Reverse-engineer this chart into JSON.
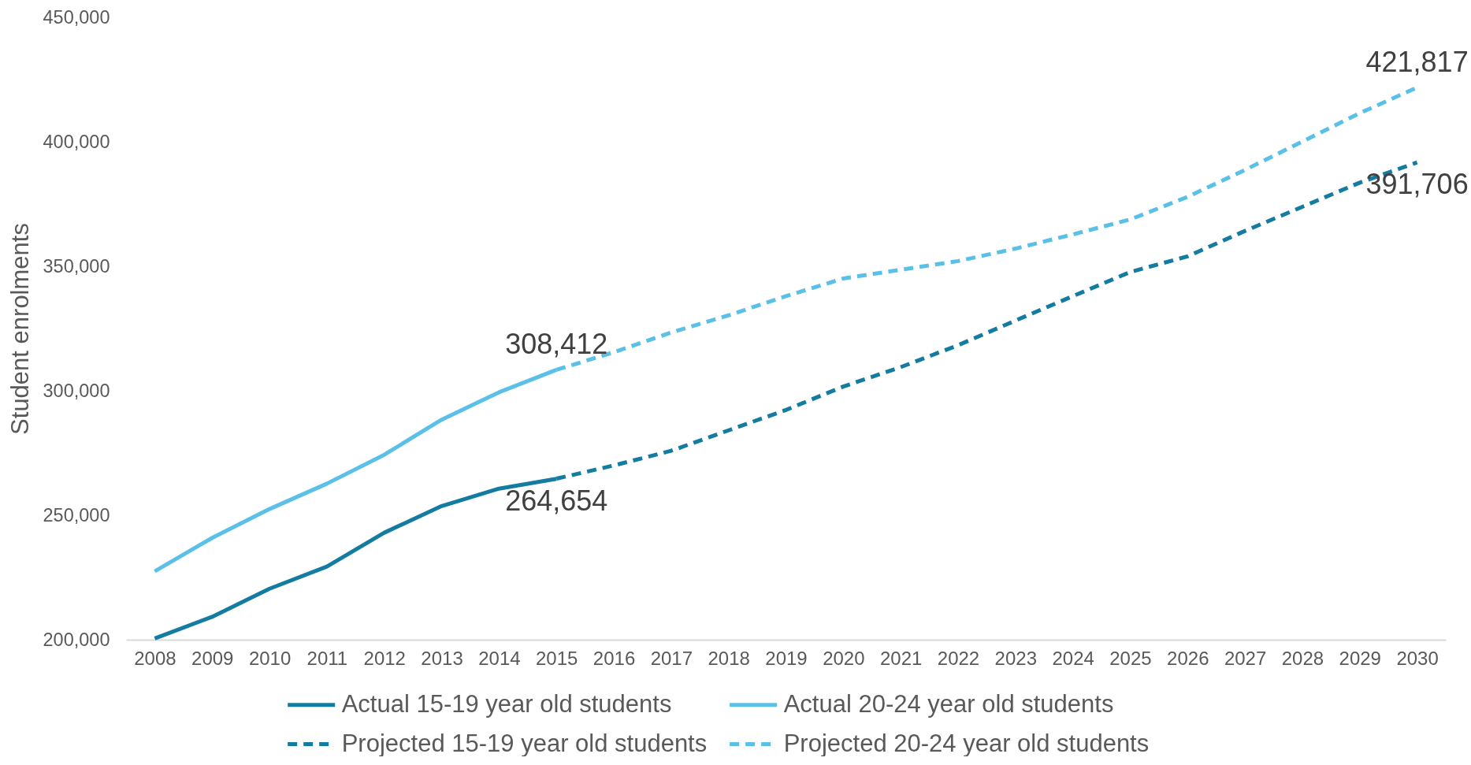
{
  "chart_data": {
    "type": "line",
    "ylabel": "Student enrolments",
    "categories": [
      "2008",
      "2009",
      "2010",
      "2011",
      "2012",
      "2013",
      "2014",
      "2015",
      "2016",
      "2017",
      "2018",
      "2019",
      "2020",
      "2021",
      "2022",
      "2023",
      "2024",
      "2025",
      "2026",
      "2027",
      "2028",
      "2029",
      "2030"
    ],
    "ylim": [
      200000,
      450000
    ],
    "yticks": [
      {
        "value": 200000,
        "label": "200,000"
      },
      {
        "value": 250000,
        "label": "250,000"
      },
      {
        "value": 300000,
        "label": "300,000"
      },
      {
        "value": 350000,
        "label": "350,000"
      },
      {
        "value": 400000,
        "label": "400,000"
      },
      {
        "value": 450000,
        "label": "450,000"
      }
    ],
    "legend": "bottom",
    "series": [
      {
        "name": "Actual 15-19 year old students",
        "color": "#137ca0",
        "line_style": "solid",
        "values": [
          200500,
          209200,
          220500,
          229400,
          243000,
          253700,
          260700,
          264654,
          null,
          null,
          null,
          null,
          null,
          null,
          null,
          null,
          null,
          null,
          null,
          null,
          null,
          null,
          null
        ],
        "value_labels": [
          null,
          null,
          null,
          null,
          null,
          null,
          null,
          "264,654",
          null,
          null,
          null,
          null,
          null,
          null,
          null,
          null,
          null,
          null,
          null,
          null,
          null,
          null,
          null
        ]
      },
      {
        "name": "Actual 20-24 year old students",
        "color": "#5bc0e8",
        "line_style": "solid",
        "values": [
          227500,
          240900,
          252500,
          262700,
          274300,
          288400,
          299400,
          308412,
          null,
          null,
          null,
          null,
          null,
          null,
          null,
          null,
          null,
          null,
          null,
          null,
          null,
          null,
          null
        ],
        "value_labels": [
          null,
          null,
          null,
          null,
          null,
          null,
          null,
          "308,412",
          null,
          null,
          null,
          null,
          null,
          null,
          null,
          null,
          null,
          null,
          null,
          null,
          null,
          null,
          null
        ]
      },
      {
        "name": "Projected 15-19 year old students",
        "color": "#137ca0",
        "line_style": "dashed",
        "values": [
          null,
          null,
          null,
          null,
          null,
          null,
          null,
          264700,
          270000,
          275900,
          284100,
          292300,
          301700,
          309500,
          318300,
          328200,
          338000,
          347700,
          354000,
          364200,
          373900,
          383600,
          391706
        ],
        "value_labels": [
          null,
          null,
          null,
          null,
          null,
          null,
          null,
          null,
          null,
          null,
          null,
          null,
          null,
          null,
          null,
          null,
          null,
          null,
          null,
          null,
          null,
          null,
          "391,706"
        ]
      },
      {
        "name": "Projected 20-24 year old students",
        "color": "#5bc0e8",
        "line_style": "dashed",
        "values": [
          null,
          null,
          null,
          null,
          null,
          null,
          null,
          308400,
          315500,
          323400,
          330300,
          338000,
          345100,
          348600,
          352100,
          357100,
          362800,
          368800,
          377900,
          388700,
          400100,
          411500,
          421817
        ],
        "value_labels": [
          null,
          null,
          null,
          null,
          null,
          null,
          null,
          null,
          null,
          null,
          null,
          null,
          null,
          null,
          null,
          null,
          null,
          null,
          null,
          null,
          null,
          null,
          "421,817"
        ]
      }
    ]
  }
}
